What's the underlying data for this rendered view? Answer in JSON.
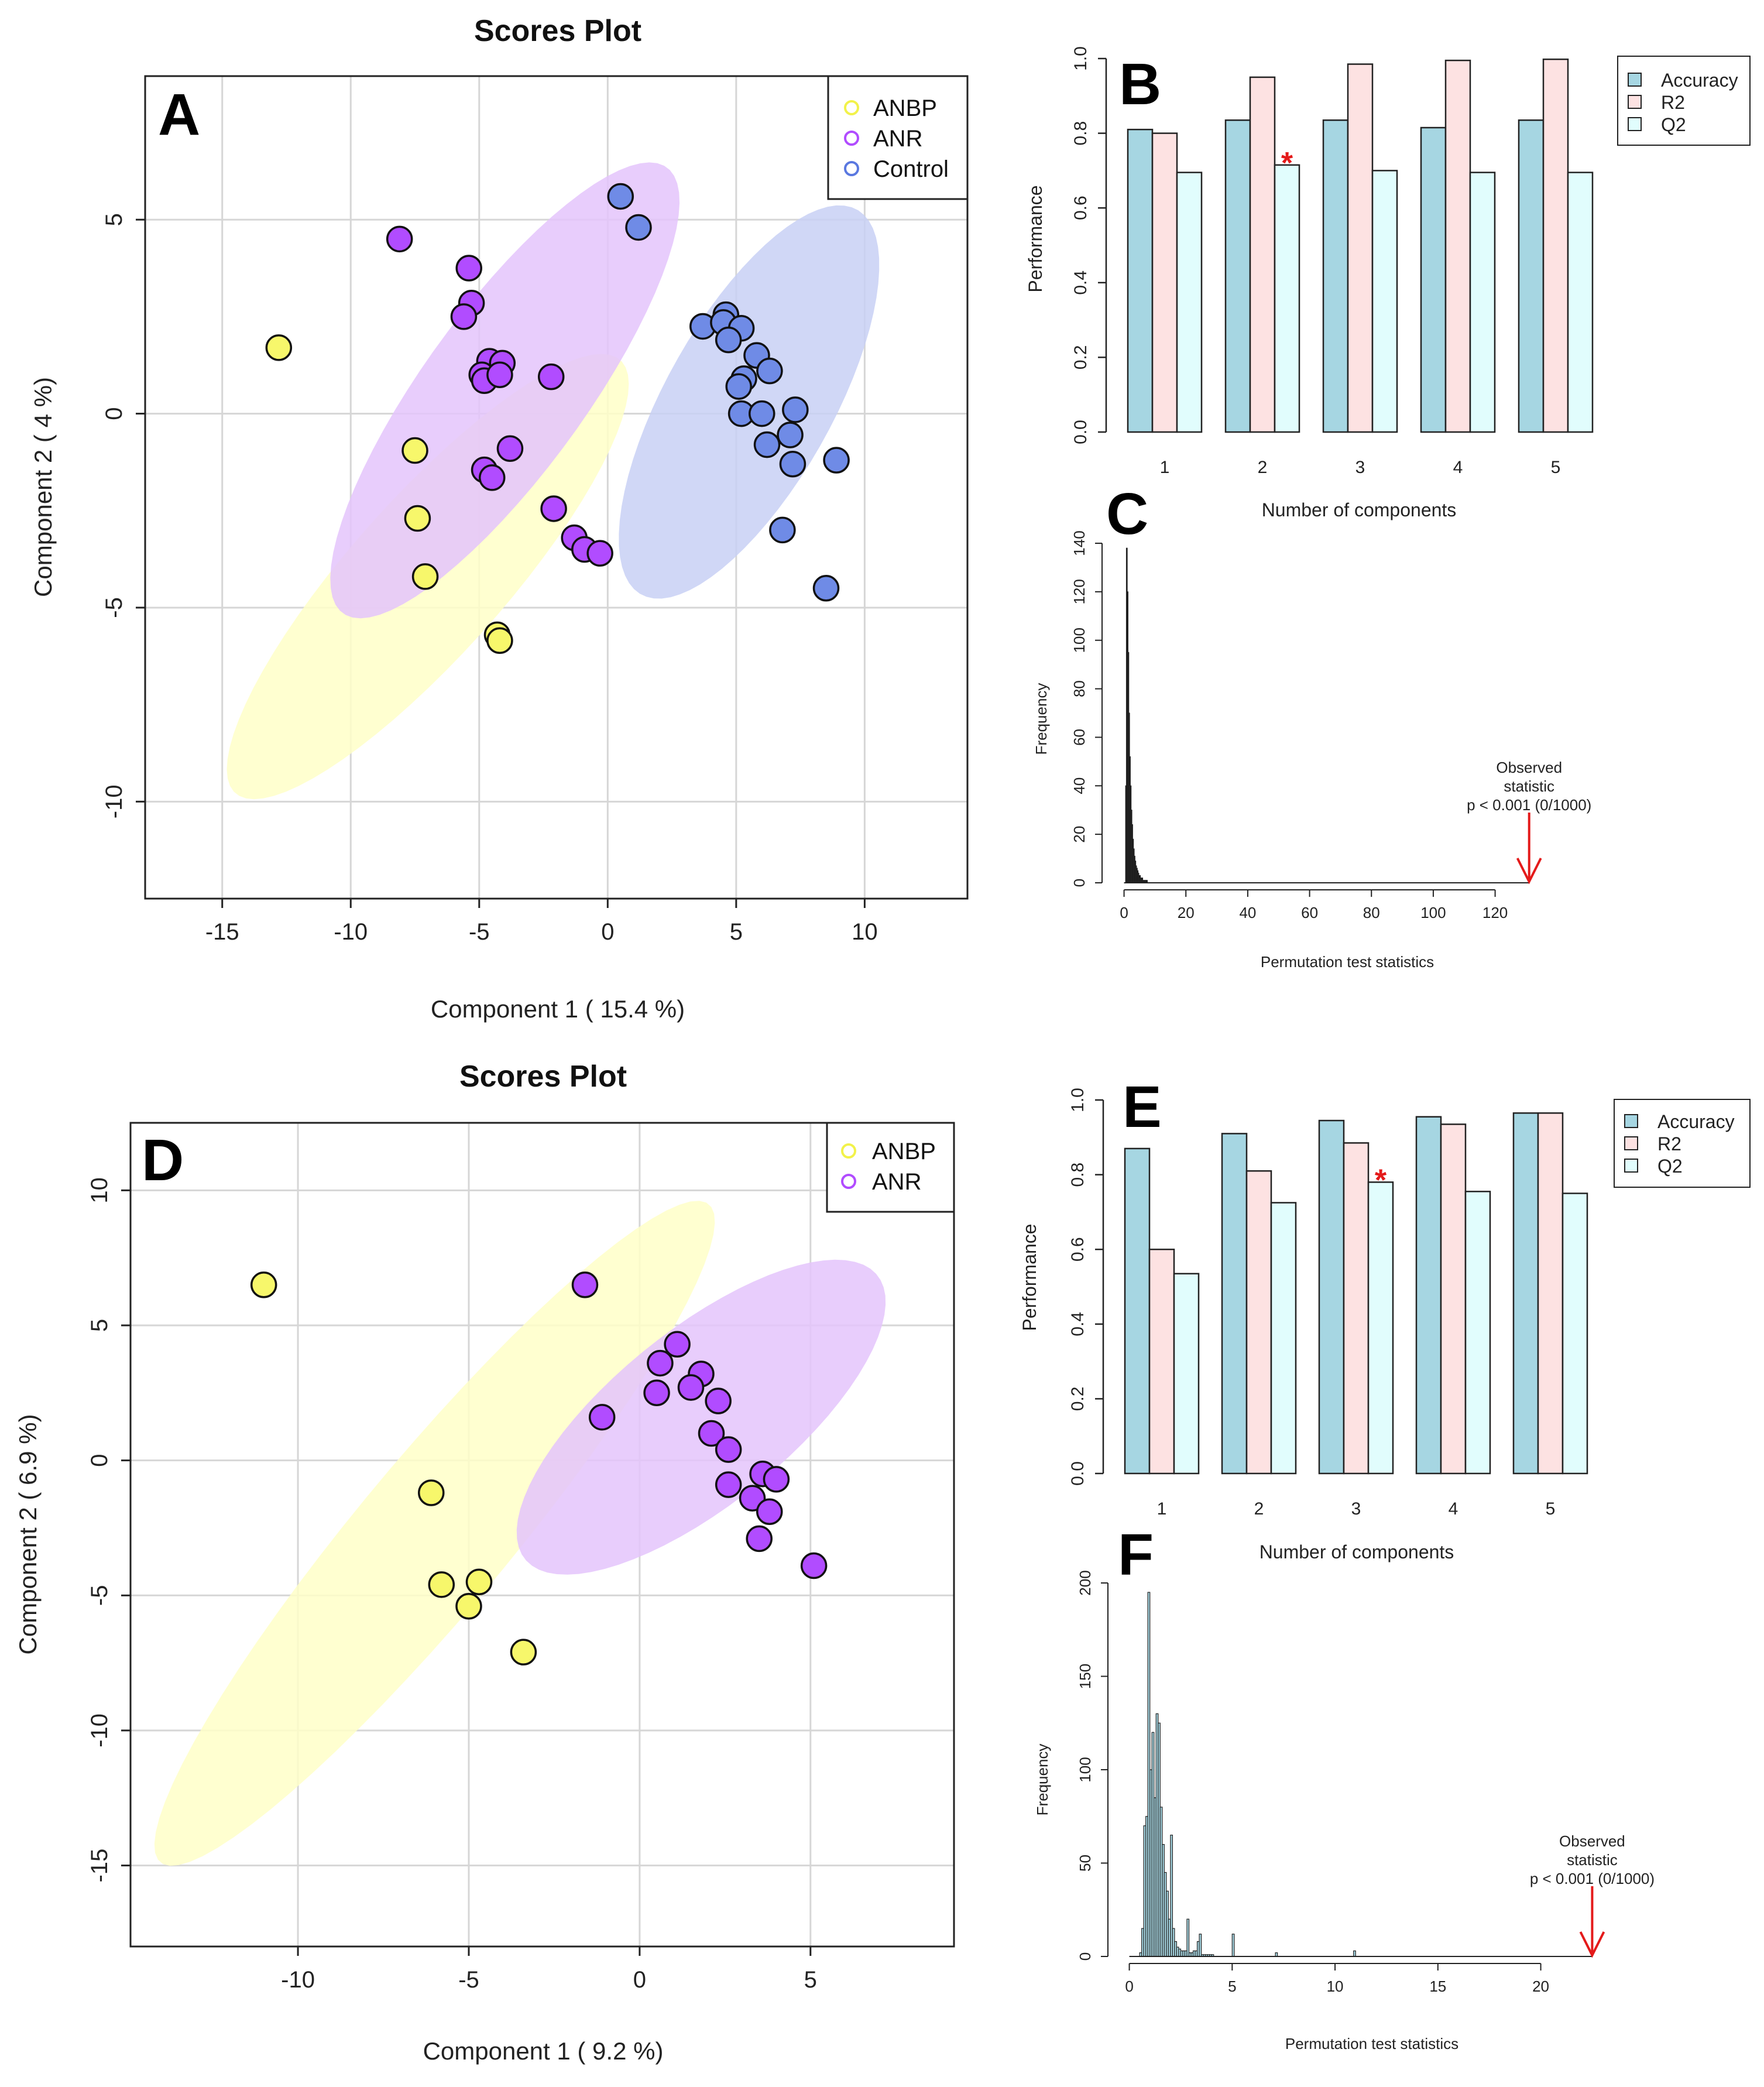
{
  "chart_data": [
    {
      "panel": "A",
      "type": "scatter",
      "title": "Scores Plot",
      "xlabel": "Component 1 ( 15.4 %)",
      "ylabel": "Component 2 ( 4 %)",
      "xlim": [
        -18,
        14
      ],
      "ylim": [
        -12.5,
        8.7
      ],
      "xticks": [
        -15,
        -10,
        -5,
        0,
        5,
        10
      ],
      "yticks": [
        -10,
        -5,
        0,
        5
      ],
      "grid": true,
      "legend_position": "top-right",
      "series": [
        {
          "name": "ANBP",
          "color": "#f7f76b",
          "ellipse_color": "#ffffc8",
          "ellipse": {
            "cx": -7,
            "cy": -4.2,
            "rx": 9.4,
            "ry": 2.4,
            "angle_deg": 35
          },
          "points": [
            [
              -12.8,
              1.7
            ],
            [
              -7.5,
              -0.95
            ],
            [
              -7.4,
              -2.7
            ],
            [
              -7.1,
              -4.2
            ],
            [
              -4.3,
              -5.7
            ],
            [
              -4.2,
              -5.85
            ]
          ]
        },
        {
          "name": "ANR",
          "color": "#b14cff",
          "ellipse_color": "#e4c4fb",
          "ellipse": {
            "cx": -4,
            "cy": 0.6,
            "rx": 8.6,
            "ry": 2.6,
            "angle_deg": 40
          },
          "points": [
            [
              -8.1,
              4.5
            ],
            [
              -5.4,
              3.75
            ],
            [
              -5.3,
              2.85
            ],
            [
              -5.6,
              2.5
            ],
            [
              -4.6,
              1.35
            ],
            [
              -4.9,
              1.0
            ],
            [
              -4.8,
              0.85
            ],
            [
              -4.1,
              1.3
            ],
            [
              -4.2,
              1.0
            ],
            [
              -2.2,
              0.95
            ],
            [
              -3.8,
              -0.9
            ],
            [
              -4.8,
              -1.45
            ],
            [
              -4.5,
              -1.65
            ],
            [
              -2.1,
              -2.45
            ],
            [
              -1.3,
              -3.2
            ],
            [
              -0.9,
              -3.5
            ],
            [
              -0.3,
              -3.6
            ]
          ]
        },
        {
          "name": "Control",
          "color": "#6f8be6",
          "ellipse_color": "#c8d0f4",
          "ellipse": {
            "cx": 5.5,
            "cy": 0.3,
            "rx": 6.6,
            "ry": 2.8,
            "angle_deg": 45
          },
          "points": [
            [
              0.5,
              5.6
            ],
            [
              1.2,
              4.8
            ],
            [
              3.7,
              2.25
            ],
            [
              4.6,
              2.55
            ],
            [
              4.5,
              2.35
            ],
            [
              5.2,
              2.2
            ],
            [
              4.7,
              1.9
            ],
            [
              5.8,
              1.5
            ],
            [
              6.3,
              1.1
            ],
            [
              5.3,
              0.9
            ],
            [
              5.1,
              0.7
            ],
            [
              7.3,
              0.1
            ],
            [
              5.2,
              0.0
            ],
            [
              6.0,
              0.0
            ],
            [
              7.1,
              -0.55
            ],
            [
              6.2,
              -0.8
            ],
            [
              7.2,
              -1.3
            ],
            [
              8.9,
              -1.2
            ],
            [
              6.8,
              -3.0
            ],
            [
              8.5,
              -4.5
            ]
          ]
        }
      ]
    },
    {
      "panel": "B",
      "type": "bar",
      "xlabel": "Number of components",
      "ylabel": "Performance",
      "ylim": [
        0,
        1
      ],
      "yticks": [
        "0.0",
        "0.2",
        "0.4",
        "0.6",
        "0.8",
        "1.0"
      ],
      "categories": [
        "1",
        "2",
        "3",
        "4",
        "5"
      ],
      "legend_position": "top-right",
      "series": [
        {
          "name": "Accuracy",
          "color": "#a6d6e2",
          "values": [
            0.81,
            0.835,
            0.835,
            0.815,
            0.835
          ]
        },
        {
          "name": "R2",
          "color": "#fde2e2",
          "values": [
            0.8,
            0.95,
            0.985,
            0.995,
            0.998
          ]
        },
        {
          "name": "Q2",
          "color": "#e1fdfd",
          "values": [
            0.695,
            0.715,
            0.7,
            0.695,
            0.695
          ]
        }
      ],
      "annotation": {
        "text": "*",
        "category": "2",
        "series": "Q2",
        "color": "#e41a1a"
      }
    },
    {
      "panel": "C",
      "type": "bar",
      "xlabel": "Permutation test statistics",
      "ylabel": "Frequency",
      "xlim": [
        -2,
        132
      ],
      "ylim": [
        0,
        140
      ],
      "xticks": [
        0,
        20,
        40,
        60,
        80,
        100,
        120
      ],
      "yticks": [
        0,
        20,
        40,
        60,
        80,
        100,
        120,
        140
      ],
      "bar_color": "#111111",
      "bin_width": 0.25,
      "bin_start": 0.5,
      "values": [
        40,
        138,
        120,
        95,
        70,
        52,
        40,
        30,
        24,
        18,
        14,
        11,
        9,
        7,
        6,
        5,
        4,
        3,
        3,
        2,
        2,
        2,
        1,
        1,
        1,
        1,
        1,
        1
      ],
      "observed": {
        "x": 131,
        "color": "#e41a1a",
        "label_lines": [
          "Observed",
          "statistic",
          "p < 0.001 (0/1000)"
        ]
      }
    },
    {
      "panel": "D",
      "type": "scatter",
      "title": "Scores Plot",
      "xlabel": "Component 1 ( 9.2 %)",
      "ylabel": "Component 2 ( 6.9 %)",
      "xlim": [
        -14.9,
        9.2
      ],
      "ylim": [
        -18,
        12.5
      ],
      "xticks": [
        -10,
        -5,
        0,
        5
      ],
      "yticks": [
        -15,
        -10,
        -5,
        0,
        5,
        10
      ],
      "grid": true,
      "legend_position": "top-right",
      "series": [
        {
          "name": "ANBP",
          "color": "#f7f76b",
          "ellipse_color": "#ffffc8",
          "ellipse": {
            "cx": -6,
            "cy": -2.7,
            "rx": 14.6,
            "ry": 2.4,
            "angle_deg": 57
          },
          "points": [
            [
              -11.0,
              6.5
            ],
            [
              -6.1,
              -1.2
            ],
            [
              -5.8,
              -4.6
            ],
            [
              -4.7,
              -4.5
            ],
            [
              -5.0,
              -5.4
            ],
            [
              -3.4,
              -7.1
            ]
          ]
        },
        {
          "name": "ANR",
          "color": "#b14cff",
          "ellipse_color": "#e4c4fb",
          "ellipse": {
            "cx": 1.8,
            "cy": 1.6,
            "rx": 7.4,
            "ry": 2.9,
            "angle_deg": 48
          },
          "points": [
            [
              -1.6,
              6.5
            ],
            [
              1.1,
              4.3
            ],
            [
              0.6,
              3.6
            ],
            [
              1.8,
              3.2
            ],
            [
              1.5,
              2.7
            ],
            [
              0.5,
              2.5
            ],
            [
              2.3,
              2.2
            ],
            [
              -1.1,
              1.6
            ],
            [
              2.1,
              1.0
            ],
            [
              2.6,
              0.4
            ],
            [
              3.6,
              -0.5
            ],
            [
              4.0,
              -0.7
            ],
            [
              2.6,
              -0.9
            ],
            [
              3.3,
              -1.4
            ],
            [
              3.8,
              -1.9
            ],
            [
              3.5,
              -2.9
            ],
            [
              5.1,
              -3.9
            ]
          ]
        }
      ]
    },
    {
      "panel": "E",
      "type": "bar",
      "xlabel": "Number of components",
      "ylabel": "Performance",
      "ylim": [
        0,
        1
      ],
      "yticks": [
        "0.0",
        "0.2",
        "0.4",
        "0.6",
        "0.8",
        "1.0"
      ],
      "categories": [
        "1",
        "2",
        "3",
        "4",
        "5"
      ],
      "legend_position": "top-right",
      "series": [
        {
          "name": "Accuracy",
          "color": "#a6d6e2",
          "values": [
            0.87,
            0.91,
            0.945,
            0.955,
            0.965
          ]
        },
        {
          "name": "R2",
          "color": "#fde2e2",
          "values": [
            0.6,
            0.81,
            0.885,
            0.935,
            0.965
          ]
        },
        {
          "name": "Q2",
          "color": "#e1fdfd",
          "values": [
            0.535,
            0.725,
            0.78,
            0.755,
            0.75
          ]
        }
      ],
      "annotation": {
        "text": "*",
        "category": "3",
        "series": "Q2",
        "color": "#e41a1a"
      }
    },
    {
      "panel": "F",
      "type": "bar",
      "xlabel": "Permutation test statistics",
      "ylabel": "Frequency",
      "xlim": [
        -0.5,
        23
      ],
      "ylim": [
        0,
        200
      ],
      "xticks": [
        0,
        5,
        10,
        15,
        20
      ],
      "yticks": [
        0,
        50,
        100,
        150,
        200
      ],
      "bar_color": "#a6d6e2",
      "bin_width": 0.1,
      "bin_start": 0.5,
      "values": [
        2,
        15,
        70,
        75,
        195,
        100,
        120,
        85,
        130,
        125,
        80,
        60,
        45,
        35,
        20,
        65,
        15,
        8,
        5,
        4,
        3,
        3,
        3,
        20,
        2,
        2,
        3,
        3,
        8,
        12,
        1,
        1,
        1,
        1,
        1,
        1
      ],
      "extra_bins": [
        [
          5.0,
          12
        ],
        [
          7.1,
          2
        ],
        [
          10.9,
          3
        ]
      ],
      "observed": {
        "x": 22.5,
        "color": "#e41a1a",
        "label_lines": [
          "Observed",
          "statistic",
          "p < 0.001 (0/1000)"
        ]
      }
    }
  ]
}
